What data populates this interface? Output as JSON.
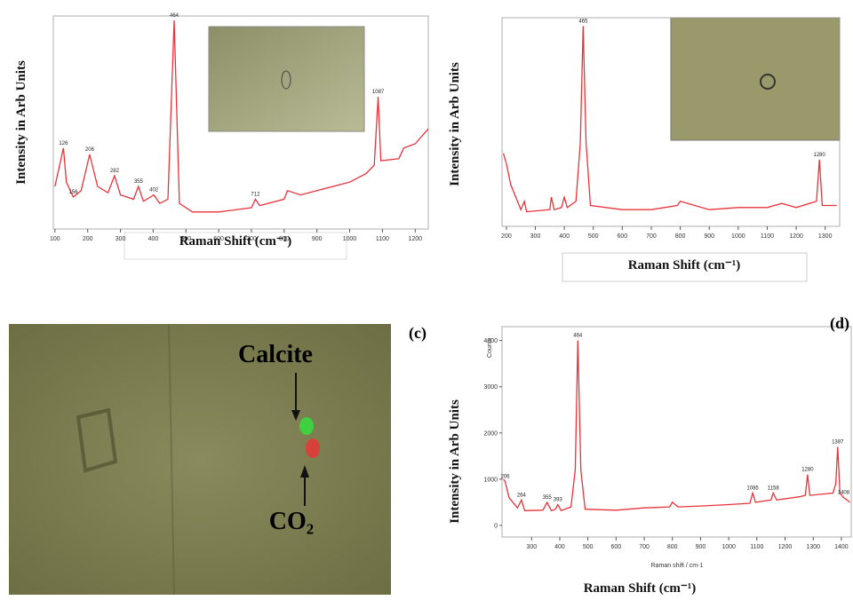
{
  "chart_data": [
    {
      "type": "line",
      "y_label": "Intensity in Arb Units",
      "x_label": "Raman Shift (cm⁻¹)",
      "xlim": [
        95,
        1240
      ],
      "xticks": [
        100,
        200,
        300,
        400,
        500,
        600,
        700,
        800,
        900,
        1000,
        1100,
        1200
      ],
      "ylim": [
        0,
        100
      ],
      "series": [
        {
          "color": "#e8333a",
          "x": [
            100,
            126,
            135,
            156,
            180,
            206,
            230,
            262,
            282,
            300,
            340,
            355,
            370,
            402,
            420,
            445,
            464,
            480,
            520,
            600,
            700,
            712,
            725,
            800,
            810,
            850,
            900,
            1000,
            1050,
            1075,
            1087,
            1095,
            1150,
            1165,
            1200,
            1240
          ],
          "values": [
            20,
            38,
            22,
            15,
            18,
            35,
            20,
            17,
            25,
            16,
            14,
            20,
            13,
            16,
            12,
            14,
            98,
            12,
            8,
            8,
            10,
            14,
            11,
            14,
            18,
            16,
            18,
            22,
            26,
            30,
            62,
            32,
            33,
            38,
            40,
            47
          ]
        }
      ],
      "peaks": [
        126,
        156,
        206,
        282,
        355,
        402,
        464,
        712,
        1087
      ]
    },
    {
      "type": "line",
      "y_label": "Intensity in Arb Units",
      "x_label": "Raman Shift (cm⁻¹)",
      "xlim": [
        185,
        1350
      ],
      "xticks": [
        200,
        300,
        400,
        500,
        600,
        700,
        800,
        900,
        1000,
        1100,
        1200,
        1300
      ],
      "ylim": [
        0,
        100
      ],
      "series": [
        {
          "color": "#e8333a",
          "x": [
            190,
            200,
            215,
            250,
            262,
            270,
            350,
            355,
            365,
            390,
            400,
            410,
            440,
            455,
            465,
            475,
            490,
            600,
            700,
            790,
            800,
            900,
            1000,
            1100,
            1150,
            1200,
            1270,
            1280,
            1290,
            1340
          ],
          "values": [
            35,
            30,
            20,
            8,
            12,
            7,
            8,
            14,
            8,
            9,
            14,
            9,
            12,
            40,
            96,
            40,
            10,
            8,
            8,
            10,
            12,
            8,
            9,
            9,
            11,
            9,
            12,
            32,
            10,
            10
          ]
        }
      ],
      "peaks": [
        465,
        1280
      ]
    },
    {
      "type": "line",
      "panel_label": "(d)",
      "y_label": "Intensity in Arb Units",
      "x_label": "Raman Shift (cm⁻¹)",
      "y_label_small": "Counts",
      "x_label_small": "Raman shift / cm-1",
      "xlim": [
        195,
        1435
      ],
      "xticks": [
        300,
        400,
        500,
        600,
        700,
        800,
        900,
        1000,
        1100,
        1200,
        1300,
        1400
      ],
      "ylim": [
        -250,
        4300
      ],
      "yticks": [
        0,
        1000,
        2000,
        3000,
        4000
      ],
      "series": [
        {
          "color": "#e8333a",
          "x": [
            200,
            206,
            220,
            250,
            264,
            275,
            340,
            355,
            370,
            385,
            393,
            405,
            440,
            455,
            464,
            475,
            490,
            600,
            700,
            790,
            800,
            820,
            900,
            1000,
            1075,
            1085,
            1095,
            1150,
            1158,
            1170,
            1250,
            1272,
            1280,
            1288,
            1370,
            1380,
            1387,
            1395,
            1408,
            1420,
            1430
          ],
          "values": [
            1000,
            950,
            600,
            380,
            550,
            320,
            330,
            500,
            320,
            350,
            450,
            320,
            400,
            1200,
            4000,
            1200,
            350,
            330,
            380,
            400,
            500,
            400,
            420,
            450,
            480,
            700,
            500,
            550,
            700,
            550,
            620,
            650,
            1100,
            650,
            700,
            900,
            1700,
            700,
            600,
            550,
            500
          ]
        }
      ],
      "peaks": [
        206,
        264,
        355,
        393,
        464,
        1085,
        1158,
        1280,
        1387,
        1408
      ]
    }
  ],
  "photo_panel": {
    "panel_label": "(c)",
    "annotations": [
      "Calcite",
      "CO₂"
    ]
  }
}
